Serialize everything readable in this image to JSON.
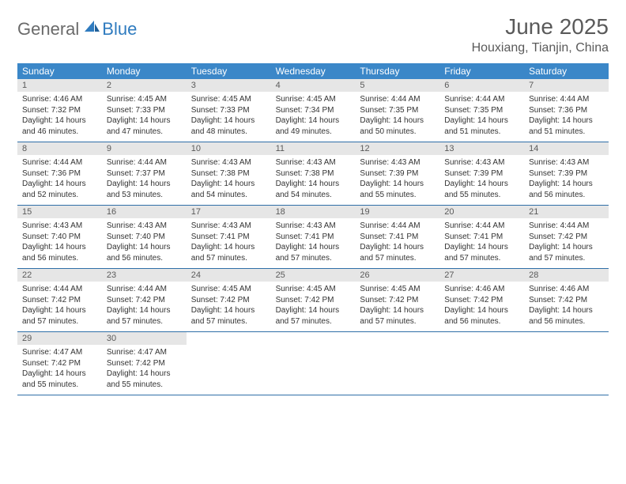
{
  "logo": {
    "text_general": "General",
    "text_blue": "Blue"
  },
  "title": "June 2025",
  "location": "Houxiang, Tianjin, China",
  "colors": {
    "header_bg": "#3b87c8",
    "header_text": "#ffffff",
    "daynum_bg": "#e6e6e6",
    "daynum_text": "#5a5a5a",
    "border": "#2f6fa8",
    "body_text": "#333333",
    "logo_gray": "#6a6a6a",
    "logo_blue": "#2f7bbf"
  },
  "weekdays": [
    "Sunday",
    "Monday",
    "Tuesday",
    "Wednesday",
    "Thursday",
    "Friday",
    "Saturday"
  ],
  "days": [
    {
      "n": "1",
      "sr": "4:46 AM",
      "ss": "7:32 PM",
      "dl": "14 hours and 46 minutes."
    },
    {
      "n": "2",
      "sr": "4:45 AM",
      "ss": "7:33 PM",
      "dl": "14 hours and 47 minutes."
    },
    {
      "n": "3",
      "sr": "4:45 AM",
      "ss": "7:33 PM",
      "dl": "14 hours and 48 minutes."
    },
    {
      "n": "4",
      "sr": "4:45 AM",
      "ss": "7:34 PM",
      "dl": "14 hours and 49 minutes."
    },
    {
      "n": "5",
      "sr": "4:44 AM",
      "ss": "7:35 PM",
      "dl": "14 hours and 50 minutes."
    },
    {
      "n": "6",
      "sr": "4:44 AM",
      "ss": "7:35 PM",
      "dl": "14 hours and 51 minutes."
    },
    {
      "n": "7",
      "sr": "4:44 AM",
      "ss": "7:36 PM",
      "dl": "14 hours and 51 minutes."
    },
    {
      "n": "8",
      "sr": "4:44 AM",
      "ss": "7:36 PM",
      "dl": "14 hours and 52 minutes."
    },
    {
      "n": "9",
      "sr": "4:44 AM",
      "ss": "7:37 PM",
      "dl": "14 hours and 53 minutes."
    },
    {
      "n": "10",
      "sr": "4:43 AM",
      "ss": "7:38 PM",
      "dl": "14 hours and 54 minutes."
    },
    {
      "n": "11",
      "sr": "4:43 AM",
      "ss": "7:38 PM",
      "dl": "14 hours and 54 minutes."
    },
    {
      "n": "12",
      "sr": "4:43 AM",
      "ss": "7:39 PM",
      "dl": "14 hours and 55 minutes."
    },
    {
      "n": "13",
      "sr": "4:43 AM",
      "ss": "7:39 PM",
      "dl": "14 hours and 55 minutes."
    },
    {
      "n": "14",
      "sr": "4:43 AM",
      "ss": "7:39 PM",
      "dl": "14 hours and 56 minutes."
    },
    {
      "n": "15",
      "sr": "4:43 AM",
      "ss": "7:40 PM",
      "dl": "14 hours and 56 minutes."
    },
    {
      "n": "16",
      "sr": "4:43 AM",
      "ss": "7:40 PM",
      "dl": "14 hours and 56 minutes."
    },
    {
      "n": "17",
      "sr": "4:43 AM",
      "ss": "7:41 PM",
      "dl": "14 hours and 57 minutes."
    },
    {
      "n": "18",
      "sr": "4:43 AM",
      "ss": "7:41 PM",
      "dl": "14 hours and 57 minutes."
    },
    {
      "n": "19",
      "sr": "4:44 AM",
      "ss": "7:41 PM",
      "dl": "14 hours and 57 minutes."
    },
    {
      "n": "20",
      "sr": "4:44 AM",
      "ss": "7:41 PM",
      "dl": "14 hours and 57 minutes."
    },
    {
      "n": "21",
      "sr": "4:44 AM",
      "ss": "7:42 PM",
      "dl": "14 hours and 57 minutes."
    },
    {
      "n": "22",
      "sr": "4:44 AM",
      "ss": "7:42 PM",
      "dl": "14 hours and 57 minutes."
    },
    {
      "n": "23",
      "sr": "4:44 AM",
      "ss": "7:42 PM",
      "dl": "14 hours and 57 minutes."
    },
    {
      "n": "24",
      "sr": "4:45 AM",
      "ss": "7:42 PM",
      "dl": "14 hours and 57 minutes."
    },
    {
      "n": "25",
      "sr": "4:45 AM",
      "ss": "7:42 PM",
      "dl": "14 hours and 57 minutes."
    },
    {
      "n": "26",
      "sr": "4:45 AM",
      "ss": "7:42 PM",
      "dl": "14 hours and 57 minutes."
    },
    {
      "n": "27",
      "sr": "4:46 AM",
      "ss": "7:42 PM",
      "dl": "14 hours and 56 minutes."
    },
    {
      "n": "28",
      "sr": "4:46 AM",
      "ss": "7:42 PM",
      "dl": "14 hours and 56 minutes."
    },
    {
      "n": "29",
      "sr": "4:47 AM",
      "ss": "7:42 PM",
      "dl": "14 hours and 55 minutes."
    },
    {
      "n": "30",
      "sr": "4:47 AM",
      "ss": "7:42 PM",
      "dl": "14 hours and 55 minutes."
    }
  ],
  "labels": {
    "sunrise": "Sunrise:",
    "sunset": "Sunset:",
    "daylight": "Daylight:"
  },
  "layout": {
    "first_weekday_index": 0,
    "total_cells": 35
  }
}
